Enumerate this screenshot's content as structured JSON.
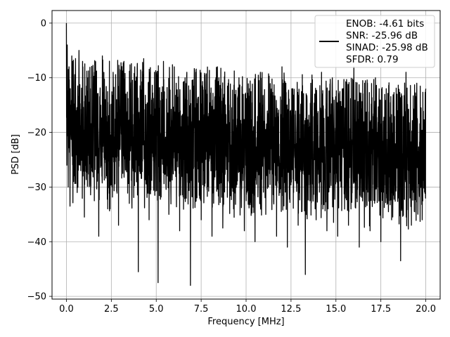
{
  "chart_data": {
    "type": "line",
    "xlabel": "Frequency [MHz]",
    "ylabel": "PSD [dB]",
    "xlim": [
      -0.8,
      20.8
    ],
    "ylim": [
      -50.5,
      2.3
    ],
    "xticks": [
      0.0,
      2.5,
      5.0,
      7.5,
      10.0,
      12.5,
      15.0,
      17.5,
      20.0
    ],
    "xtick_labels": [
      "0.0",
      "2.5",
      "5.0",
      "7.5",
      "10.0",
      "12.5",
      "15.0",
      "17.5",
      "20.0"
    ],
    "yticks": [
      0,
      -10,
      -20,
      -30,
      -40,
      -50
    ],
    "ytick_labels": [
      "0",
      "−10",
      "−20",
      "−30",
      "−40",
      "−50"
    ],
    "grid": true,
    "legend_position": "top-right",
    "legend": [
      "ENOB: -4.61 bits",
      "SNR: -25.96 dB",
      "SINAD: -25.98 dB",
      "SFDR: 0.79"
    ],
    "series": [
      {
        "color": "#000000",
        "x": [
          0.0,
          0.02,
          0.05,
          0.1,
          0.15,
          0.2,
          0.3,
          0.4,
          0.5,
          0.6,
          0.7,
          0.8,
          0.9,
          1.0,
          1.2,
          1.4,
          1.6,
          1.8,
          2.0,
          2.3,
          2.6,
          2.9,
          3.2,
          3.5,
          3.8,
          4.0,
          4.3,
          4.6,
          4.9,
          5.1,
          5.4,
          5.7,
          6.0,
          6.3,
          6.6,
          6.9,
          7.2,
          7.5,
          7.8,
          8.1,
          8.4,
          8.7,
          9.0,
          9.3,
          9.6,
          9.9,
          10.2,
          10.5,
          10.8,
          11.1,
          11.4,
          11.7,
          12.0,
          12.3,
          12.6,
          12.9,
          13.3,
          13.6,
          13.9,
          14.2,
          14.5,
          14.8,
          15.1,
          15.4,
          15.7,
          16.0,
          16.3,
          16.6,
          16.9,
          17.2,
          17.5,
          17.8,
          18.1,
          18.4,
          18.6,
          18.9,
          19.2,
          19.5,
          19.8,
          20.0
        ],
        "y": [
          0.0,
          -26.0,
          -4.0,
          -30.0,
          -8.0,
          -33.5,
          -6.0,
          -29.0,
          -9.0,
          -31.0,
          -5.0,
          -27.0,
          -7.0,
          -35.5,
          -10.0,
          -22.0,
          -8.0,
          -39.0,
          -6.0,
          -34.0,
          -9.0,
          -37.0,
          -7.0,
          -33.0,
          -8.0,
          -45.5,
          -6.5,
          -36.0,
          -9.0,
          -47.5,
          -7.0,
          -35.0,
          -8.0,
          -38.0,
          -10.0,
          -48.0,
          -9.0,
          -36.0,
          -13.0,
          -39.0,
          -8.0,
          -37.5,
          -11.0,
          -34.0,
          -10.0,
          -38.0,
          -12.0,
          -40.0,
          -9.0,
          -35.0,
          -13.0,
          -39.0,
          -8.0,
          -41.0,
          -12.0,
          -37.0,
          -46.0,
          -11.0,
          -36.0,
          -9.0,
          -38.0,
          -10.0,
          -39.0,
          -12.0,
          -37.0,
          -8.0,
          -41.0,
          -11.0,
          -38.0,
          -10.0,
          -40.0,
          -12.0,
          -36.0,
          -13.0,
          -43.5,
          -9.0,
          -37.0,
          -11.0,
          -36.0,
          -12.0
        ]
      }
    ]
  }
}
